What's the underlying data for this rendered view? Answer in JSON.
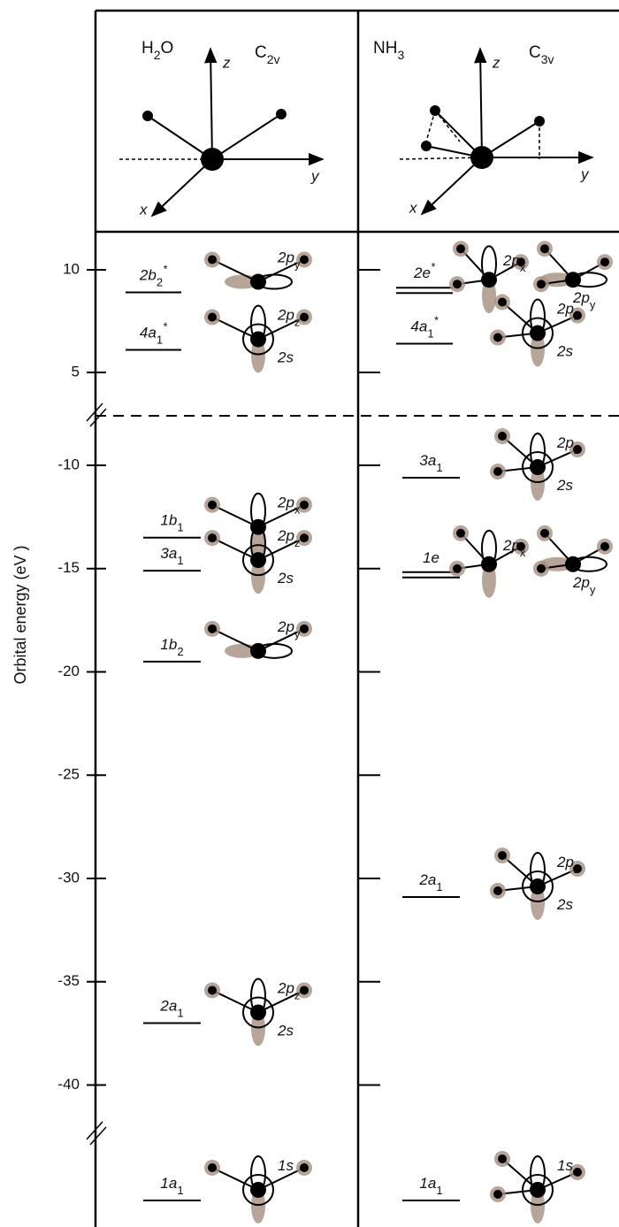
{
  "axis": {
    "label": "Orbital energy (eV )",
    "ticks": [
      10,
      5,
      -10,
      -15,
      -20,
      -25,
      -30,
      -35,
      -40
    ]
  },
  "panels": [
    {
      "molecule": [
        {
          "t": "H"
        },
        {
          "t": "2",
          "sub": true
        },
        {
          "t": "O"
        }
      ],
      "group": [
        {
          "t": "C"
        },
        {
          "t": "2v",
          "sub": true
        }
      ],
      "axes": {
        "z": "z",
        "y": "y",
        "x": "x"
      },
      "levels": [
        {
          "label": [
            {
              "t": "2b"
            },
            {
              "t": "2",
              "sub": true
            },
            {
              "t": "*",
              "sup": true
            }
          ],
          "energy": 8.9,
          "degenerate": false,
          "notes": [
            [
              {
                "t": "2p"
              },
              {
                "t": "y",
                "sub": true
              }
            ]
          ]
        },
        {
          "label": [
            {
              "t": "4a"
            },
            {
              "t": "1",
              "sub": true
            },
            {
              "t": "*",
              "sup": true
            }
          ],
          "energy": 6.1,
          "degenerate": false,
          "notes": [
            [
              {
                "t": "2p"
              },
              {
                "t": "z",
                "sub": true
              }
            ],
            [
              {
                "t": "2s"
              }
            ]
          ]
        },
        {
          "label": [
            {
              "t": "1b"
            },
            {
              "t": "1",
              "sub": true
            }
          ],
          "energy": -13.5,
          "degenerate": false,
          "notes": [
            [
              {
                "t": "2p"
              },
              {
                "t": "x",
                "sub": true
              }
            ]
          ]
        },
        {
          "label": [
            {
              "t": "3a"
            },
            {
              "t": "1",
              "sub": true
            }
          ],
          "energy": -15.1,
          "degenerate": false,
          "notes": [
            [
              {
                "t": "2p"
              },
              {
                "t": "z",
                "sub": true
              }
            ],
            [
              {
                "t": "2s"
              }
            ]
          ]
        },
        {
          "label": [
            {
              "t": "1b"
            },
            {
              "t": "2",
              "sub": true
            }
          ],
          "energy": -19.5,
          "degenerate": false,
          "notes": [
            [
              {
                "t": "2p"
              },
              {
                "t": "y",
                "sub": true
              }
            ]
          ]
        },
        {
          "label": [
            {
              "t": "2a"
            },
            {
              "t": "1",
              "sub": true
            }
          ],
          "energy": -37.0,
          "degenerate": false,
          "notes": [
            [
              {
                "t": "2p"
              },
              {
                "t": "z",
                "sub": true
              }
            ],
            [
              {
                "t": "2s"
              }
            ]
          ]
        },
        {
          "label": [
            {
              "t": "1a"
            },
            {
              "t": "1",
              "sub": true
            }
          ],
          "energy": null,
          "degenerate": false,
          "notes": [
            [
              {
                "t": "1s"
              }
            ]
          ]
        }
      ]
    },
    {
      "molecule": [
        {
          "t": "NH"
        },
        {
          "t": "3",
          "sub": true
        }
      ],
      "group": [
        {
          "t": "C"
        },
        {
          "t": "3v",
          "sub": true
        }
      ],
      "axes": {
        "z": "z",
        "y": "y",
        "x": "x"
      },
      "levels": [
        {
          "label": [
            {
              "t": "2e"
            },
            {
              "t": "*",
              "sup": true
            }
          ],
          "energy": 9.0,
          "degenerate": true,
          "notes": [
            [
              {
                "t": "2p"
              },
              {
                "t": "x",
                "sub": true
              }
            ],
            [
              {
                "t": "2p"
              },
              {
                "t": "y",
                "sub": true
              }
            ]
          ]
        },
        {
          "label": [
            {
              "t": "4a"
            },
            {
              "t": "1",
              "sub": true
            },
            {
              "t": "*",
              "sup": true
            }
          ],
          "energy": 6.4,
          "degenerate": false,
          "notes": [
            [
              {
                "t": "2p"
              },
              {
                "t": "z",
                "sub": true
              }
            ],
            [
              {
                "t": "2s"
              }
            ]
          ]
        },
        {
          "label": [
            {
              "t": "3a"
            },
            {
              "t": "1",
              "sub": true
            }
          ],
          "energy": -10.6,
          "degenerate": false,
          "notes": [
            [
              {
                "t": "2p"
              },
              {
                "t": "z",
                "sub": true
              }
            ],
            [
              {
                "t": "2s"
              }
            ]
          ]
        },
        {
          "label": [
            {
              "t": "1e"
            }
          ],
          "energy": -15.3,
          "degenerate": true,
          "notes": [
            [
              {
                "t": "2p"
              },
              {
                "t": "x",
                "sub": true
              }
            ],
            [
              {
                "t": "2p"
              },
              {
                "t": "y",
                "sub": true
              }
            ]
          ]
        },
        {
          "label": [
            {
              "t": "2a"
            },
            {
              "t": "1",
              "sub": true
            }
          ],
          "energy": -30.9,
          "degenerate": false,
          "notes": [
            [
              {
                "t": "2p"
              },
              {
                "t": "z",
                "sub": true
              }
            ],
            [
              {
                "t": "2s"
              }
            ]
          ]
        },
        {
          "label": [
            {
              "t": "1a"
            },
            {
              "t": "1",
              "sub": true
            }
          ],
          "energy": null,
          "degenerate": false,
          "notes": [
            [
              {
                "t": "1s"
              }
            ]
          ]
        }
      ]
    }
  ]
}
